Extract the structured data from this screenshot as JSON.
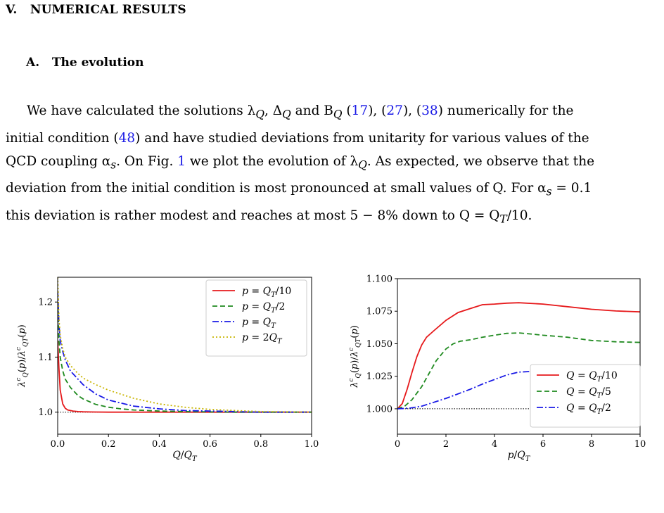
{
  "section": {
    "number": "V.",
    "title": "NUMERICAL RESULTS"
  },
  "subsection": {
    "number": "A.",
    "title": "The evolution"
  },
  "paragraph": {
    "l1_a": "We have calculated the solutions λ",
    "l1_b": "Q",
    "l1_c": ", Δ",
    "l1_d": "Q",
    "l1_e": " and B",
    "l1_f": "Q",
    "l1_g": " (",
    "ref17": "17",
    "l1_h": "), (",
    "ref27": "27",
    "l1_i": "), (",
    "ref38": "38",
    "l1_j": ") numerically for the",
    "l2_a": "initial condition (",
    "ref48": "48",
    "l2_b": ") and have studied deviations from unitarity for various values of the",
    "l3_a": "QCD coupling α",
    "l3_b": "s",
    "l3_c": ". On Fig. ",
    "fig1": "1",
    "l3_d": " we plot the evolution of λ",
    "l3_e": "Q",
    "l3_f": ". As expected, we observe that the",
    "l4_a": "deviation from the initial condition is most pronounced at small values of Q. For α",
    "l4_b": "s",
    "l4_c": " = 0.1",
    "l5": "this deviation is rather modest and reaches at most 5 − 8% down to Q = Q",
    "l5_b": "T",
    "l5_c": "/10."
  },
  "colors": {
    "red": "#e6191b",
    "green": "#1f8a1f",
    "blue": "#1a1ae6",
    "olive": "#c8b400",
    "link": "#1a1ae6"
  },
  "chart_data": [
    {
      "type": "line",
      "xlabel": "Q/Q_T",
      "ylabel": "λ^c_Q(p)/λ^c_{Q_T}(p)",
      "xlim": [
        0,
        1.0
      ],
      "ylim": [
        0.96,
        1.245
      ],
      "xticks": [
        "0.0",
        "0.2",
        "0.4",
        "0.6",
        "0.8",
        "1.0"
      ],
      "yticks": [
        "1.0",
        "1.1",
        "1.2"
      ],
      "legend_position": "top-right",
      "reference_line": 1.0,
      "series": [
        {
          "name": "p = Q_T/10",
          "color": "red",
          "style": "solid",
          "x": [
            0.0,
            0.005,
            0.01,
            0.02,
            0.03,
            0.04,
            0.06,
            0.08,
            0.1,
            0.15,
            0.2,
            0.3,
            0.5,
            1.0
          ],
          "y": [
            1.13,
            1.08,
            1.04,
            1.015,
            1.007,
            1.004,
            1.002,
            1.001,
            1.0006,
            1.0003,
            1.0,
            1.0,
            1.0,
            1.0
          ]
        },
        {
          "name": "p = Q_T/2",
          "color": "green",
          "style": "dashed",
          "x": [
            0.0,
            0.005,
            0.01,
            0.02,
            0.03,
            0.05,
            0.08,
            0.1,
            0.15,
            0.2,
            0.25,
            0.3,
            0.4,
            0.5,
            0.7,
            1.0
          ],
          "y": [
            1.2,
            1.13,
            1.1,
            1.075,
            1.06,
            1.045,
            1.03,
            1.024,
            1.014,
            1.009,
            1.006,
            1.004,
            1.002,
            1.001,
            1.0,
            1.0
          ]
        },
        {
          "name": "p = Q_T",
          "color": "blue",
          "style": "dashdot",
          "x": [
            0.0,
            0.005,
            0.01,
            0.02,
            0.03,
            0.05,
            0.08,
            0.1,
            0.15,
            0.2,
            0.3,
            0.4,
            0.5,
            0.6,
            0.7,
            0.8,
            1.0
          ],
          "y": [
            1.22,
            1.16,
            1.13,
            1.11,
            1.095,
            1.075,
            1.06,
            1.05,
            1.033,
            1.022,
            1.011,
            1.006,
            1.003,
            1.002,
            1.001,
            1.0,
            1.0
          ]
        },
        {
          "name": "p = 2Q_T",
          "color": "olive",
          "style": "dotted",
          "x": [
            0.0,
            0.005,
            0.01,
            0.02,
            0.03,
            0.05,
            0.08,
            0.1,
            0.15,
            0.2,
            0.3,
            0.4,
            0.5,
            0.6,
            0.7,
            0.8,
            1.0
          ],
          "y": [
            1.245,
            1.17,
            1.14,
            1.115,
            1.1,
            1.085,
            1.07,
            1.062,
            1.05,
            1.04,
            1.025,
            1.015,
            1.009,
            1.005,
            1.003,
            1.001,
            1.0
          ]
        }
      ]
    },
    {
      "type": "line",
      "xlabel": "p/Q_T",
      "ylabel": "λ^c_Q(p)/λ^c_{Q_T}(p)",
      "xlim": [
        0,
        10
      ],
      "ylim": [
        0.9805,
        1.1
      ],
      "xticks": [
        "0",
        "2",
        "4",
        "6",
        "8",
        "10"
      ],
      "yticks": [
        "1.000",
        "1.025",
        "1.050",
        "1.075",
        "1.100"
      ],
      "legend_position": "right",
      "reference_line": 1.0,
      "series": [
        {
          "name": "Q = Q_T/10",
          "color": "red",
          "style": "solid",
          "x": [
            0,
            0.2,
            0.4,
            0.6,
            0.8,
            1.0,
            1.2,
            1.5,
            2.0,
            2.5,
            3.0,
            3.5,
            4.0,
            4.5,
            5.0,
            6.0,
            7.0,
            8.0,
            9.0,
            10.0
          ],
          "y": [
            1.0,
            1.004,
            1.015,
            1.028,
            1.04,
            1.049,
            1.055,
            1.06,
            1.068,
            1.074,
            1.077,
            1.08,
            1.0805,
            1.0812,
            1.0815,
            1.0805,
            1.0785,
            1.0765,
            1.0752,
            1.0745
          ]
        },
        {
          "name": "Q = Q_T/5",
          "color": "green",
          "style": "dashed",
          "x": [
            0,
            0.3,
            0.6,
            1.0,
            1.3,
            1.6,
            2.0,
            2.3,
            2.6,
            3.0,
            3.5,
            4.0,
            4.5,
            5.0,
            5.5,
            6.0,
            7.0,
            8.0,
            9.0,
            10.0
          ],
          "y": [
            1.0,
            1.002,
            1.007,
            1.017,
            1.027,
            1.037,
            1.046,
            1.05,
            1.052,
            1.053,
            1.055,
            1.0565,
            1.058,
            1.0583,
            1.0575,
            1.0565,
            1.055,
            1.0525,
            1.0515,
            1.051
          ]
        },
        {
          "name": "Q = Q_T/2",
          "color": "blue",
          "style": "dashdot",
          "x": [
            0,
            0.5,
            1.0,
            1.5,
            2.0,
            2.5,
            3.0,
            3.5,
            4.0,
            4.5,
            5.0,
            5.5,
            6.0,
            7.0,
            8.0,
            9.0,
            10.0
          ],
          "y": [
            1.0,
            1.0005,
            1.002,
            1.005,
            1.008,
            1.0115,
            1.015,
            1.019,
            1.0225,
            1.026,
            1.0282,
            1.0287,
            1.0285,
            1.027,
            1.0252,
            1.0225,
            1.0205
          ]
        }
      ]
    }
  ]
}
